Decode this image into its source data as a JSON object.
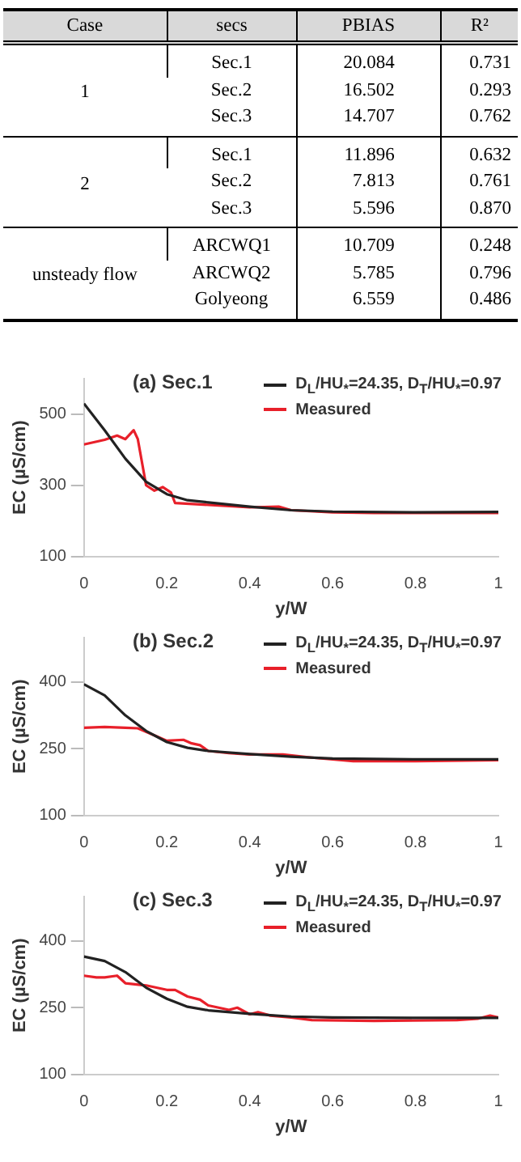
{
  "chart_data": [
    {
      "type": "other",
      "categories": [
        "Case",
        "secs",
        "PBIAS",
        "R²"
      ],
      "annotations": [
        "1",
        "Sec.1",
        "20.084",
        "0.731",
        "Sec.2",
        "16.502",
        "0.293",
        "Sec.3",
        "14.707",
        "0.762",
        "2",
        "Sec.1",
        "11.896",
        "0.632",
        "Sec.2",
        "7.813",
        "0.761",
        "Sec.3",
        "5.596",
        "0.870",
        "unsteady flow",
        "ARCWQ1",
        "10.709",
        "0.248",
        "ARCWQ2",
        "5.785",
        "0.796",
        "Golyeong",
        "6.559",
        "0.486"
      ]
    },
    {
      "type": "line",
      "title": "(a) Sec.1",
      "xlabel": "y/W",
      "ylabel": "EC (µS/cm)",
      "xlim": [
        0,
        1
      ],
      "xticks": [
        0,
        0.2,
        0.4,
        0.6,
        0.8,
        1
      ],
      "ylim": [
        100,
        600
      ],
      "yticks": [
        100,
        300,
        500
      ],
      "grid": false,
      "legend": "top right",
      "marker": "none",
      "line_style": "solid",
      "series": [
        {
          "name": "D$_{L}$/HU$_{*}$=24.35, D$_{T}$/HU$_{*}$=0.97",
          "color": "#222222",
          "x": [
            0,
            0.05,
            0.1,
            0.15,
            0.2,
            0.25,
            0.3,
            0.4,
            0.5,
            0.6,
            0.8,
            1
          ],
          "values": [
            530,
            455,
            375,
            310,
            275,
            258,
            252,
            240,
            230,
            226,
            224,
            225
          ]
        },
        {
          "name": "Measured",
          "color": "#e8202a",
          "x": [
            0,
            0.05,
            0.08,
            0.1,
            0.12,
            0.13,
            0.15,
            0.17,
            0.19,
            0.21,
            0.22,
            0.3,
            0.4,
            0.47,
            0.5,
            0.6,
            0.7,
            0.8,
            1
          ],
          "values": [
            415,
            428,
            440,
            430,
            455,
            430,
            300,
            285,
            295,
            280,
            250,
            245,
            238,
            240,
            230,
            224,
            222,
            222,
            222
          ]
        }
      ]
    },
    {
      "type": "line",
      "title": "(b) Sec.2",
      "xlabel": "y/W",
      "ylabel": "EC (µS/cm)",
      "xlim": [
        0,
        1
      ],
      "xticks": [
        0,
        0.2,
        0.4,
        0.6,
        0.8,
        1
      ],
      "ylim": [
        100,
        500
      ],
      "yticks": [
        100,
        250,
        400
      ],
      "grid": false,
      "legend": "top right",
      "marker": "none",
      "line_style": "solid",
      "series": [
        {
          "name": "D$_{L}$/HU$_{*}$=24.35, D$_{T}$/HU$_{*}$=0.97",
          "color": "#222222",
          "x": [
            0,
            0.05,
            0.1,
            0.15,
            0.2,
            0.25,
            0.3,
            0.4,
            0.5,
            0.6,
            0.8,
            1
          ],
          "values": [
            395,
            370,
            325,
            290,
            265,
            252,
            245,
            238,
            232,
            228,
            226,
            226
          ]
        },
        {
          "name": "Measured",
          "color": "#e8202a",
          "x": [
            0,
            0.05,
            0.1,
            0.13,
            0.17,
            0.2,
            0.24,
            0.26,
            0.28,
            0.3,
            0.35,
            0.4,
            0.48,
            0.55,
            0.65,
            0.8,
            1
          ],
          "values": [
            297,
            299,
            297,
            296,
            280,
            268,
            270,
            262,
            258,
            245,
            240,
            237,
            237,
            230,
            222,
            222,
            224
          ]
        }
      ]
    },
    {
      "type": "line",
      "title": "(c) Sec.3",
      "xlabel": "y/W",
      "ylabel": "EC (µS/cm)",
      "xlim": [
        0,
        1
      ],
      "xticks": [
        0,
        0.2,
        0.4,
        0.6,
        0.8,
        1
      ],
      "ylim": [
        100,
        500
      ],
      "yticks": [
        100,
        250,
        400
      ],
      "grid": false,
      "legend": "top right",
      "marker": "none",
      "line_style": "solid",
      "series": [
        {
          "name": "D$_{L}$/HU$_{*}$=24.35, D$_{T}$/HU$_{*}$=0.97",
          "color": "#222222",
          "x": [
            0,
            0.05,
            0.1,
            0.15,
            0.2,
            0.25,
            0.3,
            0.4,
            0.5,
            0.6,
            0.8,
            1
          ],
          "values": [
            365,
            355,
            330,
            295,
            270,
            252,
            244,
            236,
            230,
            228,
            227,
            227
          ]
        },
        {
          "name": "Measured",
          "color": "#e8202a",
          "x": [
            0,
            0.03,
            0.05,
            0.08,
            0.1,
            0.15,
            0.2,
            0.22,
            0.25,
            0.28,
            0.3,
            0.35,
            0.37,
            0.4,
            0.42,
            0.45,
            0.5,
            0.55,
            0.7,
            0.9,
            0.95,
            0.98,
            1
          ],
          "values": [
            322,
            318,
            318,
            322,
            305,
            300,
            290,
            290,
            275,
            268,
            255,
            245,
            250,
            235,
            240,
            232,
            228,
            222,
            220,
            222,
            225,
            232,
            228
          ]
        }
      ]
    }
  ]
}
